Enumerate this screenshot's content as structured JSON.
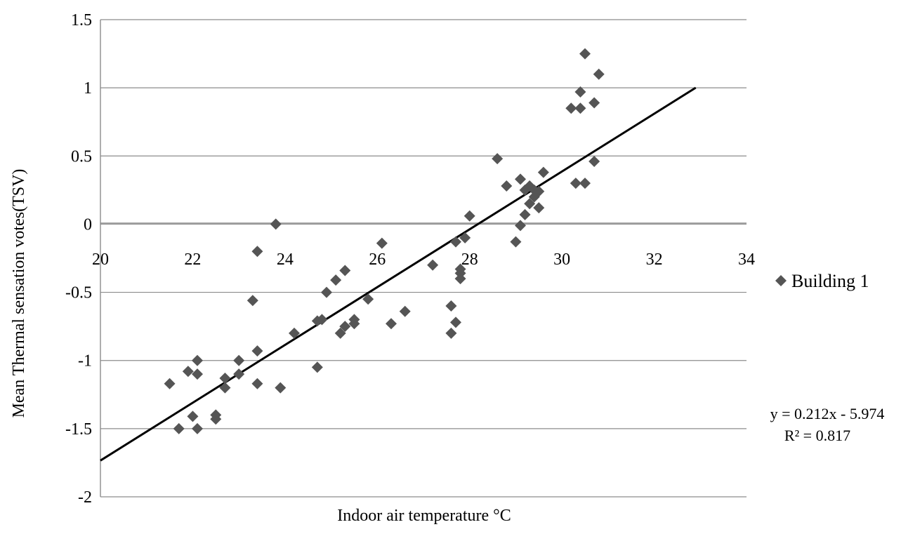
{
  "chart_data": {
    "type": "scatter",
    "title": "",
    "xlabel": "Indoor air temperature °C",
    "ylabel": "Mean Thermal sensation votes(TSV)",
    "xlim": [
      20,
      34
    ],
    "ylim": [
      -2,
      1.5
    ],
    "x_ticks": [
      "20",
      "22",
      "24",
      "26",
      "28",
      "30",
      "32",
      "34"
    ],
    "y_ticks": [
      "1.5",
      "1",
      "0.5",
      "0",
      "-0.5",
      "-1",
      "-1.5",
      "-2"
    ],
    "grid": "horizontal",
    "legend": {
      "position": "right",
      "entries": [
        "Building 1"
      ]
    },
    "series": [
      {
        "name": "Building 1",
        "marker": "diamond",
        "color": "#555555",
        "points": [
          [
            21.5,
            -1.17
          ],
          [
            21.7,
            -1.5
          ],
          [
            21.9,
            -1.08
          ],
          [
            22.0,
            -1.41
          ],
          [
            22.1,
            -1.5
          ],
          [
            22.1,
            -1.0
          ],
          [
            22.1,
            -1.1
          ],
          [
            22.5,
            -1.4
          ],
          [
            22.5,
            -1.43
          ],
          [
            22.7,
            -1.13
          ],
          [
            22.7,
            -1.2
          ],
          [
            23.0,
            -1.0
          ],
          [
            23.0,
            -1.1
          ],
          [
            23.3,
            -0.56
          ],
          [
            23.4,
            -0.2
          ],
          [
            23.4,
            -0.93
          ],
          [
            23.4,
            -1.17
          ],
          [
            23.8,
            0.0
          ],
          [
            23.9,
            -1.2
          ],
          [
            24.2,
            -0.8
          ],
          [
            24.7,
            -0.71
          ],
          [
            24.7,
            -1.05
          ],
          [
            24.8,
            -0.7
          ],
          [
            24.9,
            -0.5
          ],
          [
            25.1,
            -0.41
          ],
          [
            25.2,
            -0.8
          ],
          [
            25.3,
            -0.34
          ],
          [
            25.3,
            -0.75
          ],
          [
            25.5,
            -0.7
          ],
          [
            25.5,
            -0.73
          ],
          [
            25.8,
            -0.55
          ],
          [
            26.1,
            -0.14
          ],
          [
            26.3,
            -0.73
          ],
          [
            26.6,
            -0.64
          ],
          [
            27.2,
            -0.3
          ],
          [
            27.6,
            -0.6
          ],
          [
            27.6,
            -0.8
          ],
          [
            27.7,
            -0.13
          ],
          [
            27.7,
            -0.72
          ],
          [
            27.8,
            -0.33
          ],
          [
            27.8,
            -0.36
          ],
          [
            27.8,
            -0.4
          ],
          [
            27.9,
            -0.1
          ],
          [
            28.0,
            0.06
          ],
          [
            28.6,
            0.48
          ],
          [
            28.8,
            0.28
          ],
          [
            29.0,
            -0.13
          ],
          [
            29.1,
            0.33
          ],
          [
            29.1,
            -0.01
          ],
          [
            29.2,
            0.07
          ],
          [
            29.2,
            0.25
          ],
          [
            29.3,
            0.15
          ],
          [
            29.3,
            0.28
          ],
          [
            29.4,
            0.25
          ],
          [
            29.4,
            0.2
          ],
          [
            29.5,
            0.12
          ],
          [
            29.5,
            0.24
          ],
          [
            29.6,
            0.38
          ],
          [
            30.2,
            0.85
          ],
          [
            30.3,
            0.3
          ],
          [
            30.4,
            0.97
          ],
          [
            30.4,
            0.85
          ],
          [
            30.5,
            1.25
          ],
          [
            30.5,
            0.3
          ],
          [
            30.7,
            0.89
          ],
          [
            30.7,
            0.46
          ],
          [
            30.8,
            1.1
          ]
        ]
      }
    ],
    "trendline": {
      "type": "linear",
      "slope": 0.212,
      "intercept": -5.974,
      "x_range": [
        20,
        32.9
      ],
      "equation": "y = 0.212x - 5.974",
      "r_squared": "R² = 0.817",
      "color": "#000000"
    }
  }
}
